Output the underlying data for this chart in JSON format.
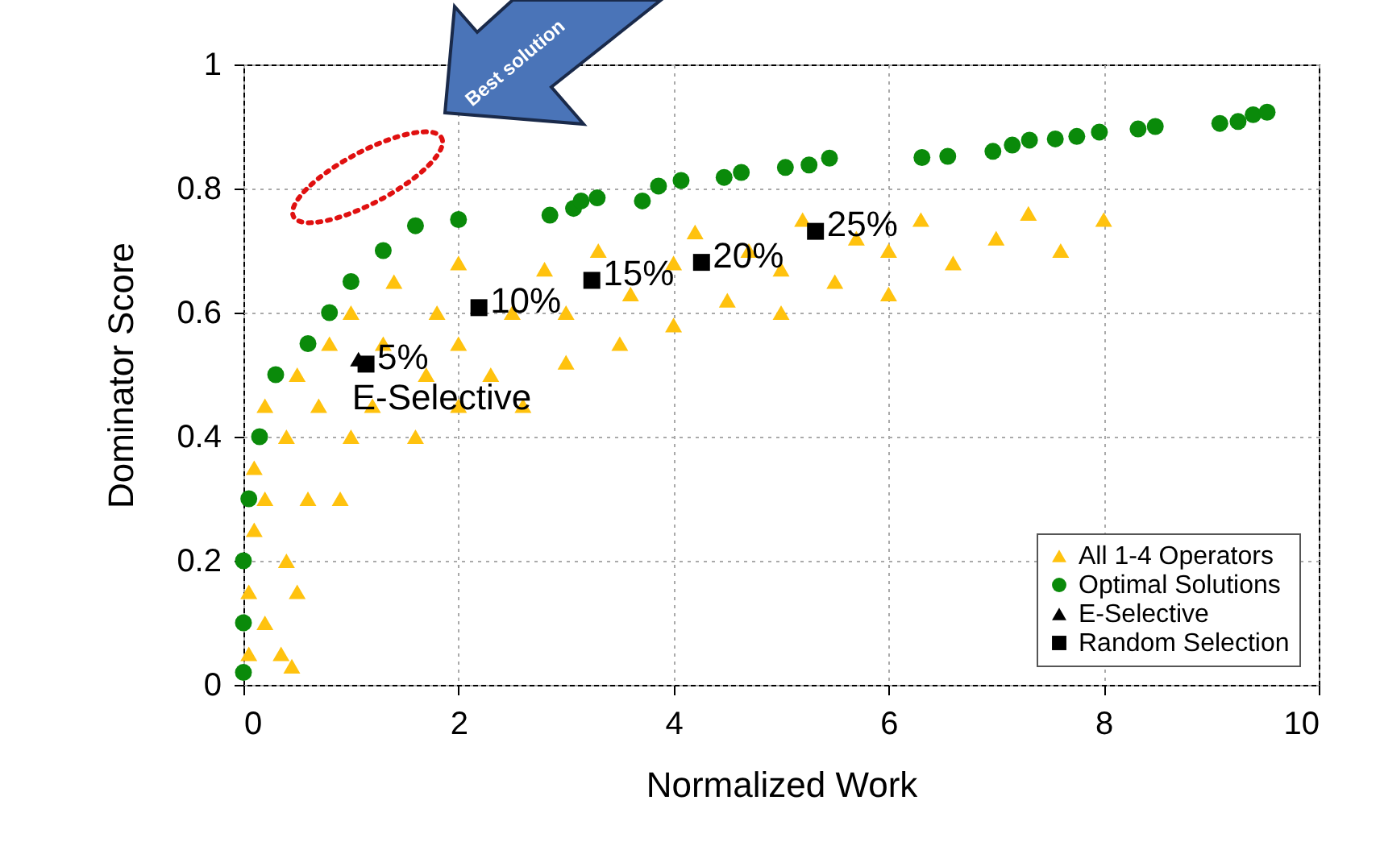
{
  "chart_data": {
    "type": "scatter",
    "xlabel": "Normalized Work",
    "ylabel": "Dominator Score",
    "xlim": [
      0,
      10
    ],
    "ylim": [
      0,
      1
    ],
    "xticks": [
      0,
      2,
      4,
      6,
      8,
      10
    ],
    "yticks": [
      0,
      0.2,
      0.4,
      0.6,
      0.8,
      1
    ],
    "grid": true,
    "legend": "bottom right",
    "series": [
      {
        "name": "All 1-4 Operators",
        "color": "#ffc20e",
        "marker": "triangle",
        "x": [
          0.05,
          0.05,
          0.1,
          0.1,
          0.2,
          0.2,
          0.2,
          0.35,
          0.45,
          0.4,
          0.4,
          0.5,
          0.5,
          0.6,
          0.7,
          0.8,
          0.9,
          1,
          1,
          1.2,
          1.3,
          1.4,
          1.6,
          1.7,
          1.8,
          2,
          2,
          2,
          2.3,
          2.5,
          2.6,
          2.8,
          3,
          3,
          3.3,
          3.5,
          3.6,
          4,
          4,
          4.2,
          4.5,
          4.7,
          5,
          5,
          5.2,
          5.5,
          5.7,
          6,
          6,
          6.3,
          6.6,
          7,
          7.3,
          7.6,
          8
        ],
        "values": [
          0.05,
          0.15,
          0.25,
          0.35,
          0.1,
          0.3,
          0.45,
          0.05,
          0.03,
          0.2,
          0.4,
          0.15,
          0.5,
          0.3,
          0.45,
          0.55,
          0.3,
          0.4,
          0.6,
          0.45,
          0.55,
          0.65,
          0.4,
          0.5,
          0.6,
          0.45,
          0.55,
          0.68,
          0.5,
          0.6,
          0.45,
          0.67,
          0.52,
          0.6,
          0.7,
          0.55,
          0.63,
          0.58,
          0.68,
          0.73,
          0.62,
          0.7,
          0.6,
          0.67,
          0.75,
          0.65,
          0.72,
          0.63,
          0.7,
          0.75,
          0.68,
          0.72,
          0.76,
          0.7,
          0.75
        ]
      },
      {
        "name": "Optimal Solutions",
        "color": "#0a8a0a",
        "marker": "circle",
        "x": [
          0,
          0,
          0,
          0.05,
          0.15,
          0.3,
          0.6,
          0.8,
          1,
          1.3,
          1.6,
          2,
          2.85,
          3.07,
          3.14,
          3.29,
          3.71,
          3.86,
          4.07,
          4.47,
          4.63,
          5.04,
          5.26,
          5.45,
          6.31,
          6.55,
          6.97,
          7.15,
          7.31,
          7.55,
          7.75,
          7.96,
          8.32,
          8.48,
          9.08,
          9.25,
          9.39,
          9.52
        ],
        "values": [
          0.02,
          0.1,
          0.2,
          0.3,
          0.4,
          0.5,
          0.55,
          0.6,
          0.65,
          0.7,
          0.74,
          0.75,
          0.757,
          0.768,
          0.78,
          0.785,
          0.78,
          0.804,
          0.813,
          0.818,
          0.826,
          0.834,
          0.838,
          0.849,
          0.85,
          0.852,
          0.86,
          0.87,
          0.878,
          0.88,
          0.884,
          0.891,
          0.896,
          0.9,
          0.905,
          0.908,
          0.919,
          0.923
        ]
      },
      {
        "name": "E-Selective",
        "color": "#000000",
        "marker": "triangle",
        "x": [
          1.07
        ],
        "values": [
          0.525
        ]
      },
      {
        "name": "Random Selection",
        "color": "#000000",
        "marker": "square",
        "x": [
          1.14,
          2.19,
          3.24,
          4.26,
          5.32
        ],
        "values": [
          0.517,
          0.608,
          0.652,
          0.681,
          0.731
        ]
      }
    ],
    "annotations": [
      {
        "text": "E-Selective",
        "x": 1.07,
        "y": 0.525
      },
      {
        "text": "5%",
        "x": 1.14,
        "y": 0.517
      },
      {
        "text": "10%",
        "x": 2.19,
        "y": 0.608
      },
      {
        "text": "15%",
        "x": 3.24,
        "y": 0.652
      },
      {
        "text": "20%",
        "x": 4.26,
        "y": 0.681
      },
      {
        "text": "25%",
        "x": 5.32,
        "y": 0.731
      },
      "Best solution"
    ]
  }
}
